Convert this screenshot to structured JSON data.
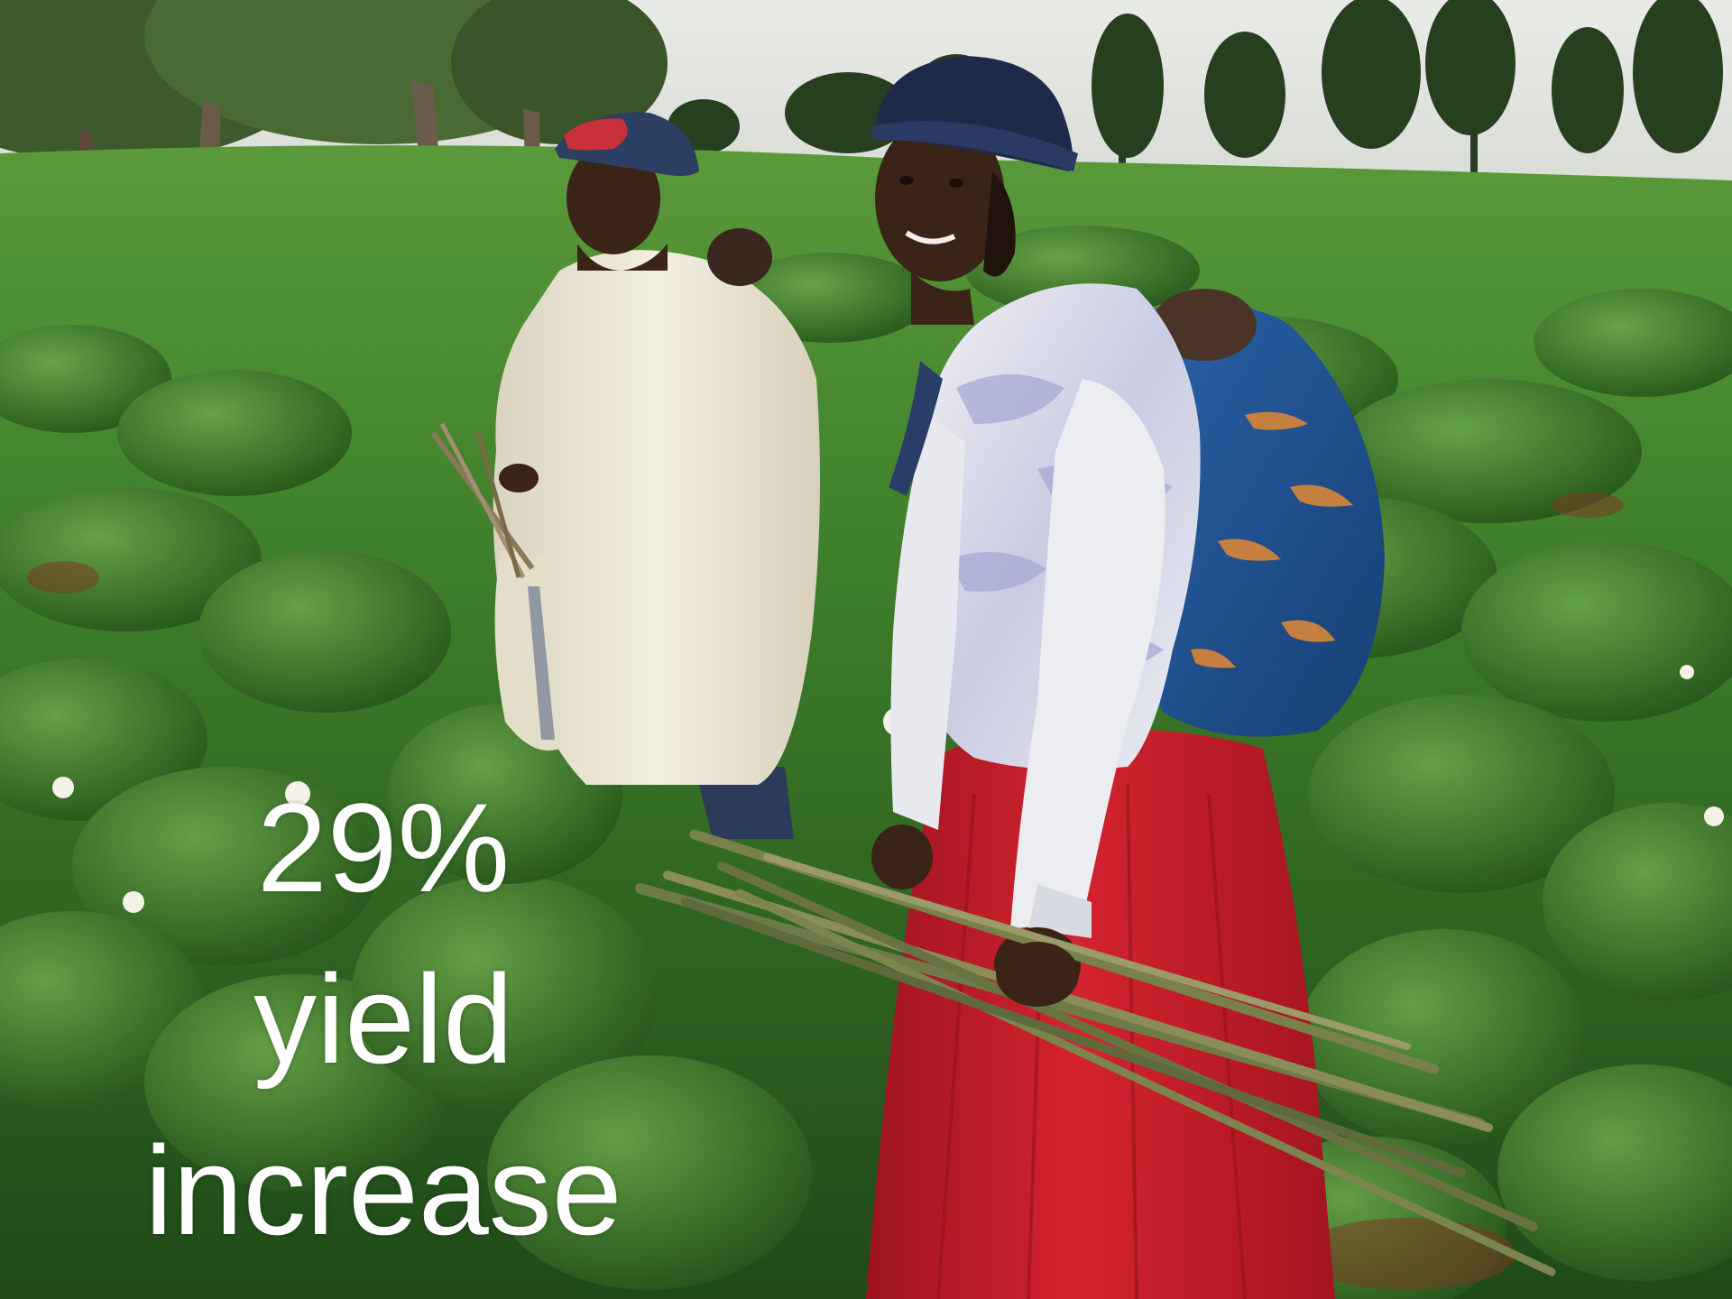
{
  "slide": {
    "caption_lines": [
      "29%",
      "yield",
      "increase"
    ]
  },
  "colors": {
    "field_green": "#3f7a2a",
    "sky": "#e6e8e4",
    "skirt_red": "#c8202a",
    "shawl_cream": "#efeadb",
    "wrap_blue": "#1f4f8f",
    "hat_navy": "#1f2a4a",
    "caption_text": "#ffffff"
  },
  "scene": {
    "elements": [
      "sky",
      "trees",
      "potato-field",
      "woman-left",
      "woman-right",
      "baby-wrap",
      "bundle-of-sticks",
      "potato-flowers"
    ]
  }
}
